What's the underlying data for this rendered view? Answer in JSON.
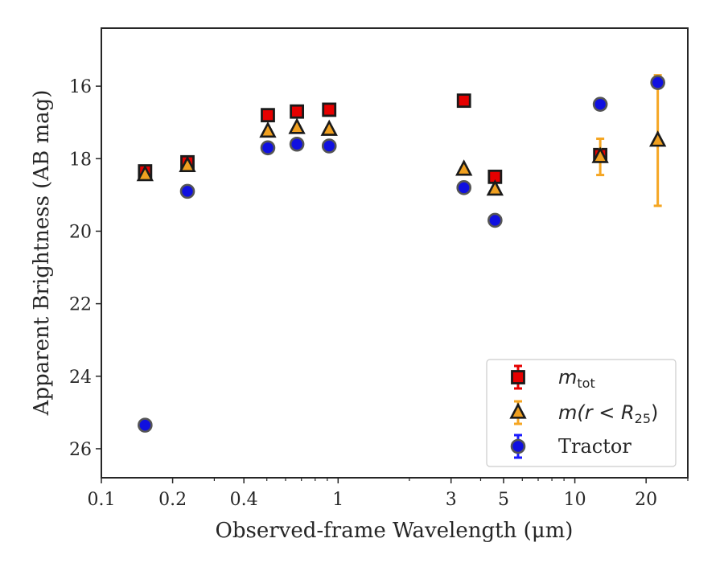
{
  "chart_data": {
    "type": "scatter",
    "xlabel": "Observed-frame Wavelength (μm)",
    "ylabel": "Apparent Brightness (AB mag)",
    "x_scale": "log",
    "y_inverted": true,
    "xlim": [
      0.1,
      30
    ],
    "ylim": [
      26.8,
      14.4
    ],
    "x_ticks": [
      0.1,
      0.2,
      0.4,
      1,
      3,
      5,
      10,
      20
    ],
    "x_tick_labels": [
      "0.1",
      "0.2",
      "0.4",
      "1",
      "3",
      "5",
      "10",
      "20"
    ],
    "y_ticks": [
      16,
      18,
      20,
      22,
      24,
      26
    ],
    "y_tick_labels": [
      "16",
      "18",
      "20",
      "22",
      "24",
      "26"
    ],
    "grid": false,
    "legend_position": "lower-right",
    "legend": [
      {
        "math": "m",
        "sub": "tot",
        "rest": ""
      },
      {
        "math": "m(r < R",
        "sub": "25",
        "rest": ")"
      },
      {
        "math": "",
        "sub": "",
        "rest": "Tractor"
      }
    ],
    "series": [
      {
        "marker": "square",
        "fill": "#e60000",
        "error_color": "#e60000",
        "x": [
          0.153,
          0.231,
          0.505,
          0.67,
          0.917,
          3.4,
          4.6,
          12.8
        ],
        "y": [
          18.35,
          18.1,
          16.8,
          16.7,
          16.65,
          16.4,
          18.5,
          17.9
        ],
        "err": [
          0.12,
          0.1,
          0.05,
          0.05,
          0.05,
          0.05,
          0.08,
          0.15
        ]
      },
      {
        "marker": "triangle",
        "fill": "#f0a020",
        "error_color": "#f5a623",
        "x": [
          0.153,
          0.231,
          0.505,
          0.67,
          0.917,
          3.4,
          4.6,
          12.8,
          22.4
        ],
        "y": [
          18.45,
          18.2,
          17.25,
          17.15,
          17.2,
          18.3,
          18.85,
          17.95,
          17.5
        ],
        "err": [
          0.05,
          0.05,
          0.05,
          0.05,
          0.05,
          0.05,
          0.05,
          0.5,
          1.8
        ]
      },
      {
        "marker": "circle",
        "fill": "#1010e0",
        "error_color": "#1a1aff",
        "x": [
          0.153,
          0.231,
          0.505,
          0.67,
          0.917,
          3.4,
          4.6,
          12.8,
          22.4
        ],
        "y": [
          25.35,
          18.9,
          17.7,
          17.6,
          17.65,
          18.8,
          19.7,
          16.5,
          15.9
        ],
        "err": [
          0.05,
          0.05,
          0.05,
          0.05,
          0.05,
          0.05,
          0.05,
          0.05,
          0.05
        ]
      }
    ]
  }
}
